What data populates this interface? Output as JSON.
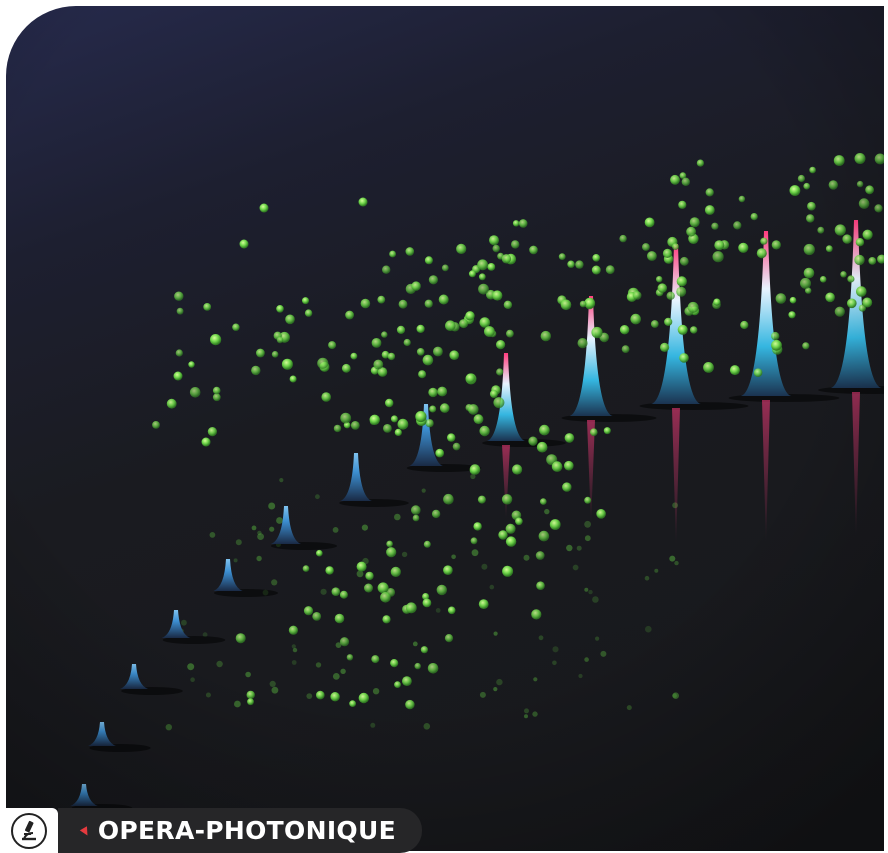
{
  "caption": {
    "category_icon": "microscope-icon",
    "arrow_icon": "red-arrow-icon",
    "label": "OPERA-PHOTONIQUE"
  },
  "colors": {
    "background": "#1a1b20",
    "particle": "#7fe35a",
    "peak_low": "#3fa9d8",
    "peak_high": "#ff4f8a",
    "label_bg": "#262628",
    "arrow": "#e53a3e"
  },
  "scene": {
    "subject": "row of glowing light-pulse peaks with scattered green particles",
    "peak_count": 14
  }
}
